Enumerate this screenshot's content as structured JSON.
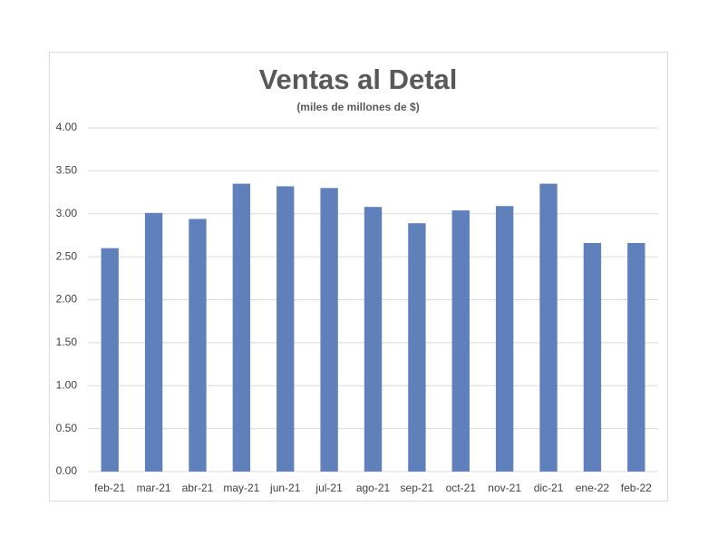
{
  "chart_data": {
    "type": "bar",
    "title": "Ventas al Detal",
    "subtitle": "(miles de millones de $)",
    "categories": [
      "feb-21",
      "mar-21",
      "abr-21",
      "may-21",
      "jun-21",
      "jul-21",
      "ago-21",
      "sep-21",
      "oct-21",
      "nov-21",
      "dic-21",
      "ene-22",
      "feb-22"
    ],
    "values": [
      2.6,
      3.01,
      2.94,
      3.35,
      3.32,
      3.3,
      3.08,
      2.89,
      3.04,
      3.09,
      3.35,
      2.66,
      2.66
    ],
    "color": "#6080bb",
    "ylim": [
      0,
      4
    ],
    "yticks": [
      {
        "value": 0,
        "label": "0.00"
      },
      {
        "value": 0.5,
        "label": "0.50"
      },
      {
        "value": 1,
        "label": "1.00"
      },
      {
        "value": 1.5,
        "label": "1.50"
      },
      {
        "value": 2,
        "label": "2.00"
      },
      {
        "value": 2.5,
        "label": "2.50"
      },
      {
        "value": 3,
        "label": "3.00"
      },
      {
        "value": 3.5,
        "label": "3.50"
      },
      {
        "value": 4,
        "label": "4.00"
      }
    ],
    "grid": true
  }
}
